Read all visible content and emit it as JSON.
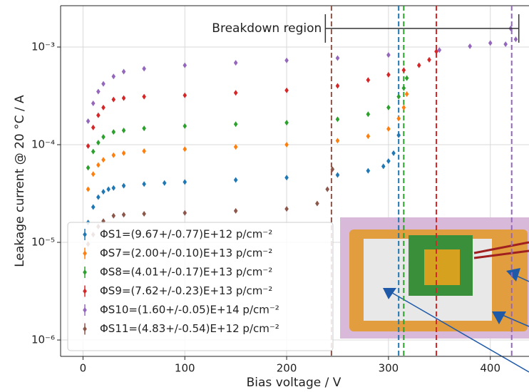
{
  "chart_data": {
    "type": "scatter",
    "xlabel": "Bias voltage / V",
    "ylabel": "Leakage current @ 20 °C / A",
    "xlim": [
      -22,
      438
    ],
    "xticks": [
      0,
      100,
      200,
      300,
      400
    ],
    "ylim": [
      6.8e-07,
      0.00265
    ],
    "log_y": true,
    "yticks": [
      {
        "value": 1e-06,
        "label": "10⁻⁶"
      },
      {
        "value": 1e-05,
        "label": "10⁻⁵"
      },
      {
        "value": 0.0001,
        "label": "10⁻⁴"
      },
      {
        "value": 0.001,
        "label": "10⁻³"
      }
    ],
    "grid": true,
    "legend": "lower left",
    "series": [
      {
        "name": "ΦS1=(9.67+/-0.77)E+12 p/cm⁻²",
        "color": "#1f77b4",
        "x": [
          5,
          10,
          15,
          20,
          25,
          30,
          40,
          60,
          80,
          100,
          150,
          200,
          250,
          280,
          295,
          300,
          305,
          310
        ],
        "values": [
          1.6e-05,
          2.3e-05,
          2.9e-05,
          3.3e-05,
          3.5e-05,
          3.6e-05,
          3.8e-05,
          3.95e-05,
          4.05e-05,
          4.15e-05,
          4.35e-05,
          4.6e-05,
          4.9e-05,
          5.4e-05,
          6e-05,
          6.8e-05,
          8.2e-05,
          0.000125
        ]
      },
      {
        "name": "ΦS7=(2.00+/-0.10)E+13 p/cm⁻²",
        "color": "#ff7f0e",
        "x": [
          5,
          10,
          15,
          20,
          30,
          40,
          60,
          100,
          150,
          200,
          250,
          280,
          300,
          310,
          315,
          318
        ],
        "values": [
          3.5e-05,
          5e-05,
          6.2e-05,
          7e-05,
          7.8e-05,
          8.2e-05,
          8.6e-05,
          9e-05,
          9.5e-05,
          0.0001,
          0.00011,
          0.000122,
          0.000145,
          0.000185,
          0.00024,
          0.00033
        ]
      },
      {
        "name": "ΦS8=(4.01+/-0.17)E+13 p/cm⁻²",
        "color": "#2ca02c",
        "x": [
          5,
          10,
          15,
          20,
          30,
          40,
          60,
          100,
          150,
          200,
          250,
          280,
          300,
          310,
          315,
          318
        ],
        "values": [
          5.8e-05,
          8.5e-05,
          0.000105,
          0.00012,
          0.000135,
          0.00014,
          0.000147,
          0.000155,
          0.000162,
          0.000168,
          0.000182,
          0.000205,
          0.00024,
          0.00031,
          0.00038,
          0.00048
        ]
      },
      {
        "name": "ΦS9=(7.62+/-0.23)E+13 p/cm⁻²",
        "color": "#d62728",
        "x": [
          5,
          10,
          15,
          20,
          30,
          40,
          60,
          100,
          150,
          200,
          250,
          280,
          300,
          315,
          330,
          340,
          347
        ],
        "values": [
          9.7e-05,
          0.00015,
          0.0002,
          0.00024,
          0.00029,
          0.0003,
          0.00031,
          0.00032,
          0.00034,
          0.00036,
          0.0004,
          0.00046,
          0.00052,
          0.00058,
          0.00065,
          0.00074,
          0.0009
        ]
      },
      {
        "name": "ΦS10=(1.60+/-0.05)E+14 p/cm⁻²",
        "color": "#9467bd",
        "x": [
          5,
          10,
          15,
          20,
          30,
          40,
          60,
          100,
          150,
          200,
          250,
          300,
          350,
          380,
          400,
          415,
          420,
          425
        ],
        "values": [
          0.000174,
          0.000265,
          0.00035,
          0.00042,
          0.0005,
          0.00056,
          0.0006,
          0.00065,
          0.00069,
          0.00073,
          0.00077,
          0.00083,
          0.00093,
          0.00102,
          0.0011,
          0.00107,
          0.00155,
          0.0012
        ]
      },
      {
        "name": "ΦS11=(4.83+/-0.54)E+12 p/cm⁻²",
        "color": "#8c564b",
        "x": [
          5,
          10,
          15,
          20,
          30,
          40,
          60,
          100,
          150,
          200,
          230,
          240,
          245
        ],
        "values": [
          9.6e-06,
          1.2e-05,
          1.45e-05,
          1.65e-05,
          1.87e-05,
          1.92e-05,
          1.96e-05,
          2e-05,
          2.1e-05,
          2.2e-05,
          2.5e-05,
          3.5e-05,
          5.6e-05
        ]
      }
    ],
    "vlines": [
      {
        "x": 244,
        "color": "#8c564b"
      },
      {
        "x": 310,
        "color": "#1f77b4"
      },
      {
        "x": 315,
        "color": "#2ca02c"
      },
      {
        "x": 347,
        "color": "#d62728"
      },
      {
        "x": 421,
        "color": "#9467bd"
      }
    ],
    "annotation": {
      "text": "Breakdown region",
      "x": [
        238,
        428
      ],
      "y": 0.00155
    }
  }
}
